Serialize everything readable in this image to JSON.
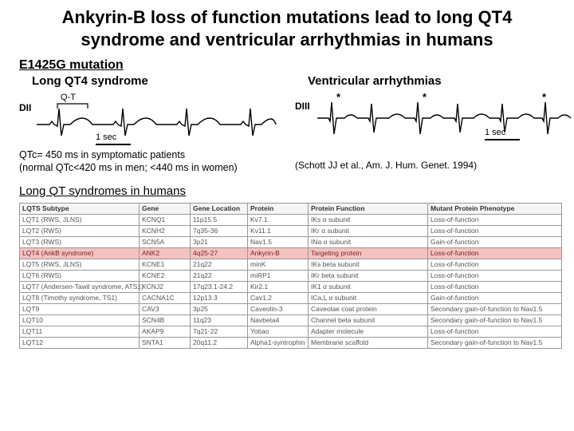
{
  "title": "Ankyrin-B loss of function mutations lead to long QT4 syndrome and ventricular arrhythmias in humans",
  "mutation_heading": "E1425G mutation",
  "left_panel": {
    "title": "Long QT4 syndrome",
    "lead": "DII",
    "qt_label": "Q-T",
    "scale": "1 sec",
    "caption": "QTc= 450 ms in symptomatic patients\n(normal QTc<420 ms in men; <440 ms in women)"
  },
  "right_panel": {
    "title": "Ventricular arrhythmias",
    "lead": "DIII",
    "scale": "1 sec",
    "citation": "(Schott JJ et al., Am. J. Hum. Genet. 1994)"
  },
  "ecg": {
    "left_stroke": "#000000",
    "right_stroke": "#000000",
    "stroke_width": 1.4
  },
  "lower_heading": "Long QT syndromes in humans",
  "table": {
    "columns": [
      "LQTS Subtype",
      "Gene",
      "Gene Location",
      "Protein",
      "Protein Function",
      "Mutant Protein Phenotype"
    ],
    "highlight_row_index": 3,
    "rows": [
      [
        "LQT1 (RWS, JLNS)",
        "KCNQ1",
        "11p15.5",
        "Kv7.1",
        "IKs α subunit",
        "Loss-of-function"
      ],
      [
        "LQT2 (RWS)",
        "KCNH2",
        "7q35-36",
        "Kv11.1",
        "IKr α subunit",
        "Loss-of-function"
      ],
      [
        "LQT3 (RWS)",
        "SCN5A",
        "3p21",
        "Nav1.5",
        "INa α subunit",
        "Gain-of-function"
      ],
      [
        "LQT4 (AnkB syndrome)",
        "ANK2",
        "4q25-27",
        "Ankyrin-B",
        "Targeting protein",
        "Loss-of-function"
      ],
      [
        "LQT5 (RWS, JLNS)",
        "KCNE1",
        "21q22",
        "minK",
        "IKs beta subunit",
        "Loss-of-function"
      ],
      [
        "LQT6 (RWS)",
        "KCNE2",
        "21q22",
        "miRP1",
        "IKr beta subunit",
        "Loss-of-function"
      ],
      [
        "LQT7 (Andersen-Tawil syndrome, ATS1)",
        "KCNJ2",
        "17q23.1-24.2",
        "Kir2.1",
        "IK1 α subunit",
        "Loss-of-function"
      ],
      [
        "LQT8 (Timothy syndrome, TS1)",
        "CACNA1C",
        "12p13.3",
        "Cav1.2",
        "ICa,L α subunit",
        "Gain-of-function"
      ],
      [
        "LQT9",
        "CAV3",
        "3p25",
        "Caveolin-3",
        "Caveolae coat protein",
        "Secondary gain-of-function to Nav1.5"
      ],
      [
        "LQT10",
        "SCN4B",
        "11q23",
        "Navbeta4",
        "Channel beta subunit",
        "Secondary gain-of-function to Nav1.5"
      ],
      [
        "LQT11",
        "AKAP9",
        "7q21-22",
        "Yotiao",
        "Adapter molecule",
        "Loss-of-function"
      ],
      [
        "LQT12",
        "SNTA1",
        "20q11.2",
        "Alpha1-syntrophin",
        "Membrane scaffold",
        "Secondary gain-of-function to Nav1.5"
      ]
    ]
  }
}
